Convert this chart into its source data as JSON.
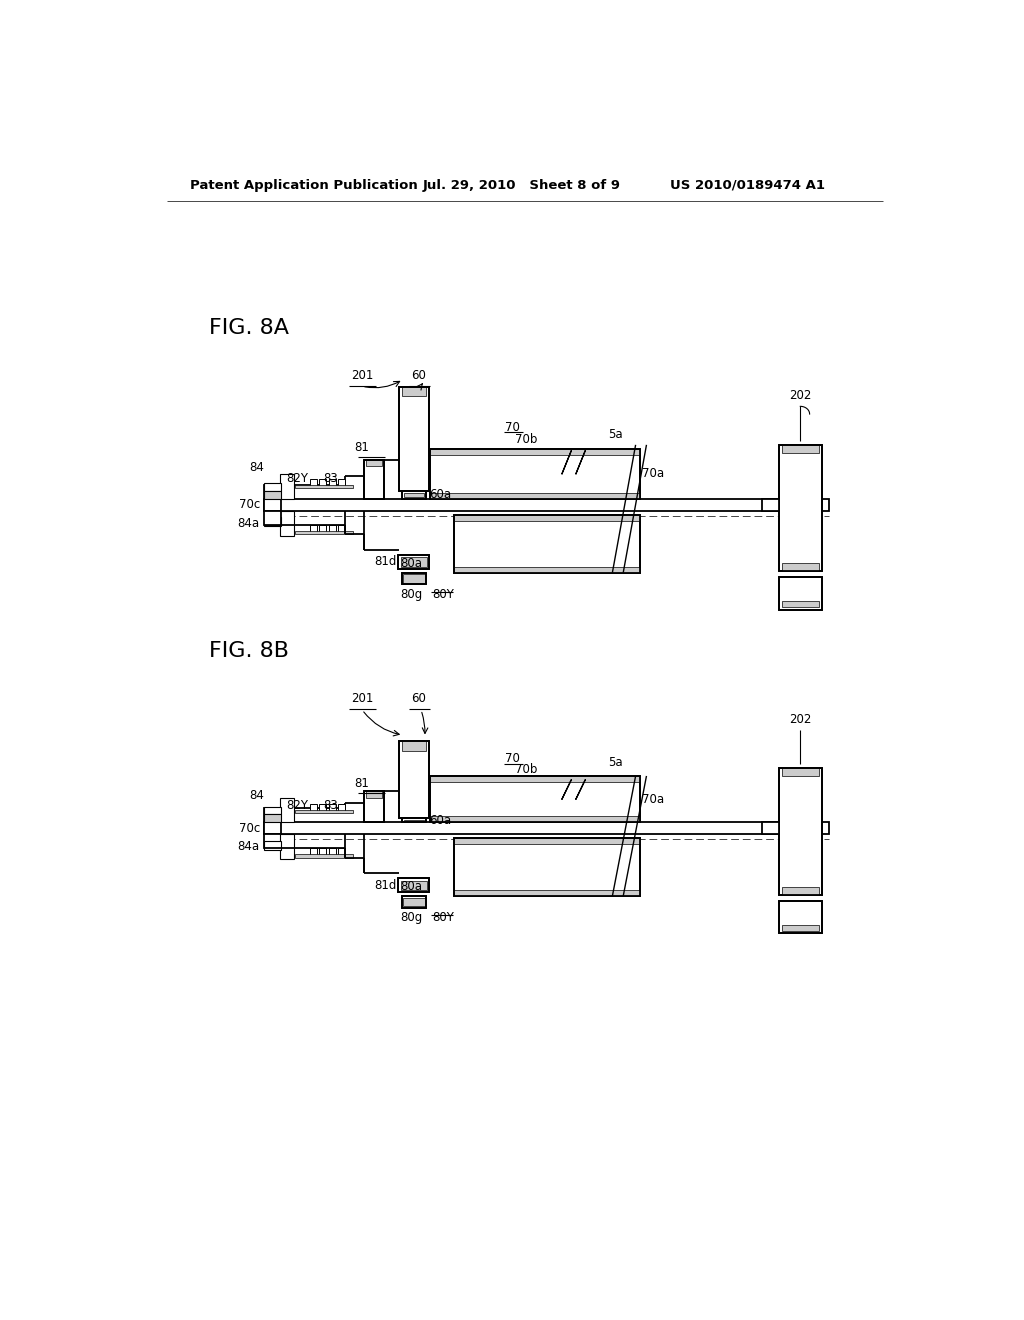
{
  "bg_color": "#ffffff",
  "header_left": "Patent Application Publication",
  "header_mid": "Jul. 29, 2010   Sheet 8 of 9",
  "header_right": "US 2010/0189474 A1",
  "fig8a_label": "FIG. 8A",
  "fig8b_label": "FIG. 8B",
  "lw": 1.3
}
